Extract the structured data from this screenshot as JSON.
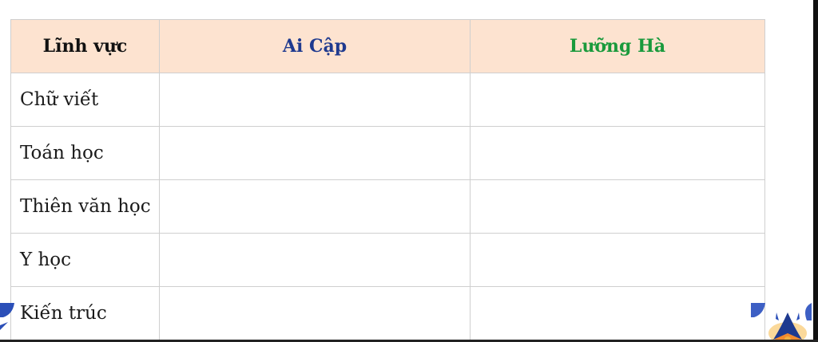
{
  "table": {
    "headers": [
      "Lĩnh vực",
      "Ai Cập",
      "Lưỡng Hà"
    ],
    "header_colors": [
      "#111111",
      "#1f3a8f",
      "#1a9a3c"
    ],
    "rows": [
      {
        "label": "Chữ viết",
        "ai_cap": "",
        "luong_ha": ""
      },
      {
        "label": "Toán học",
        "ai_cap": "",
        "luong_ha": ""
      },
      {
        "label": "Thiên văn học",
        "ai_cap": "",
        "luong_ha": ""
      },
      {
        "label": "Y học",
        "ai_cap": "",
        "luong_ha": ""
      },
      {
        "label": "Kiến trúc",
        "ai_cap": "",
        "luong_ha": ""
      }
    ]
  },
  "colors": {
    "header_bg": "#fde3d0"
  }
}
